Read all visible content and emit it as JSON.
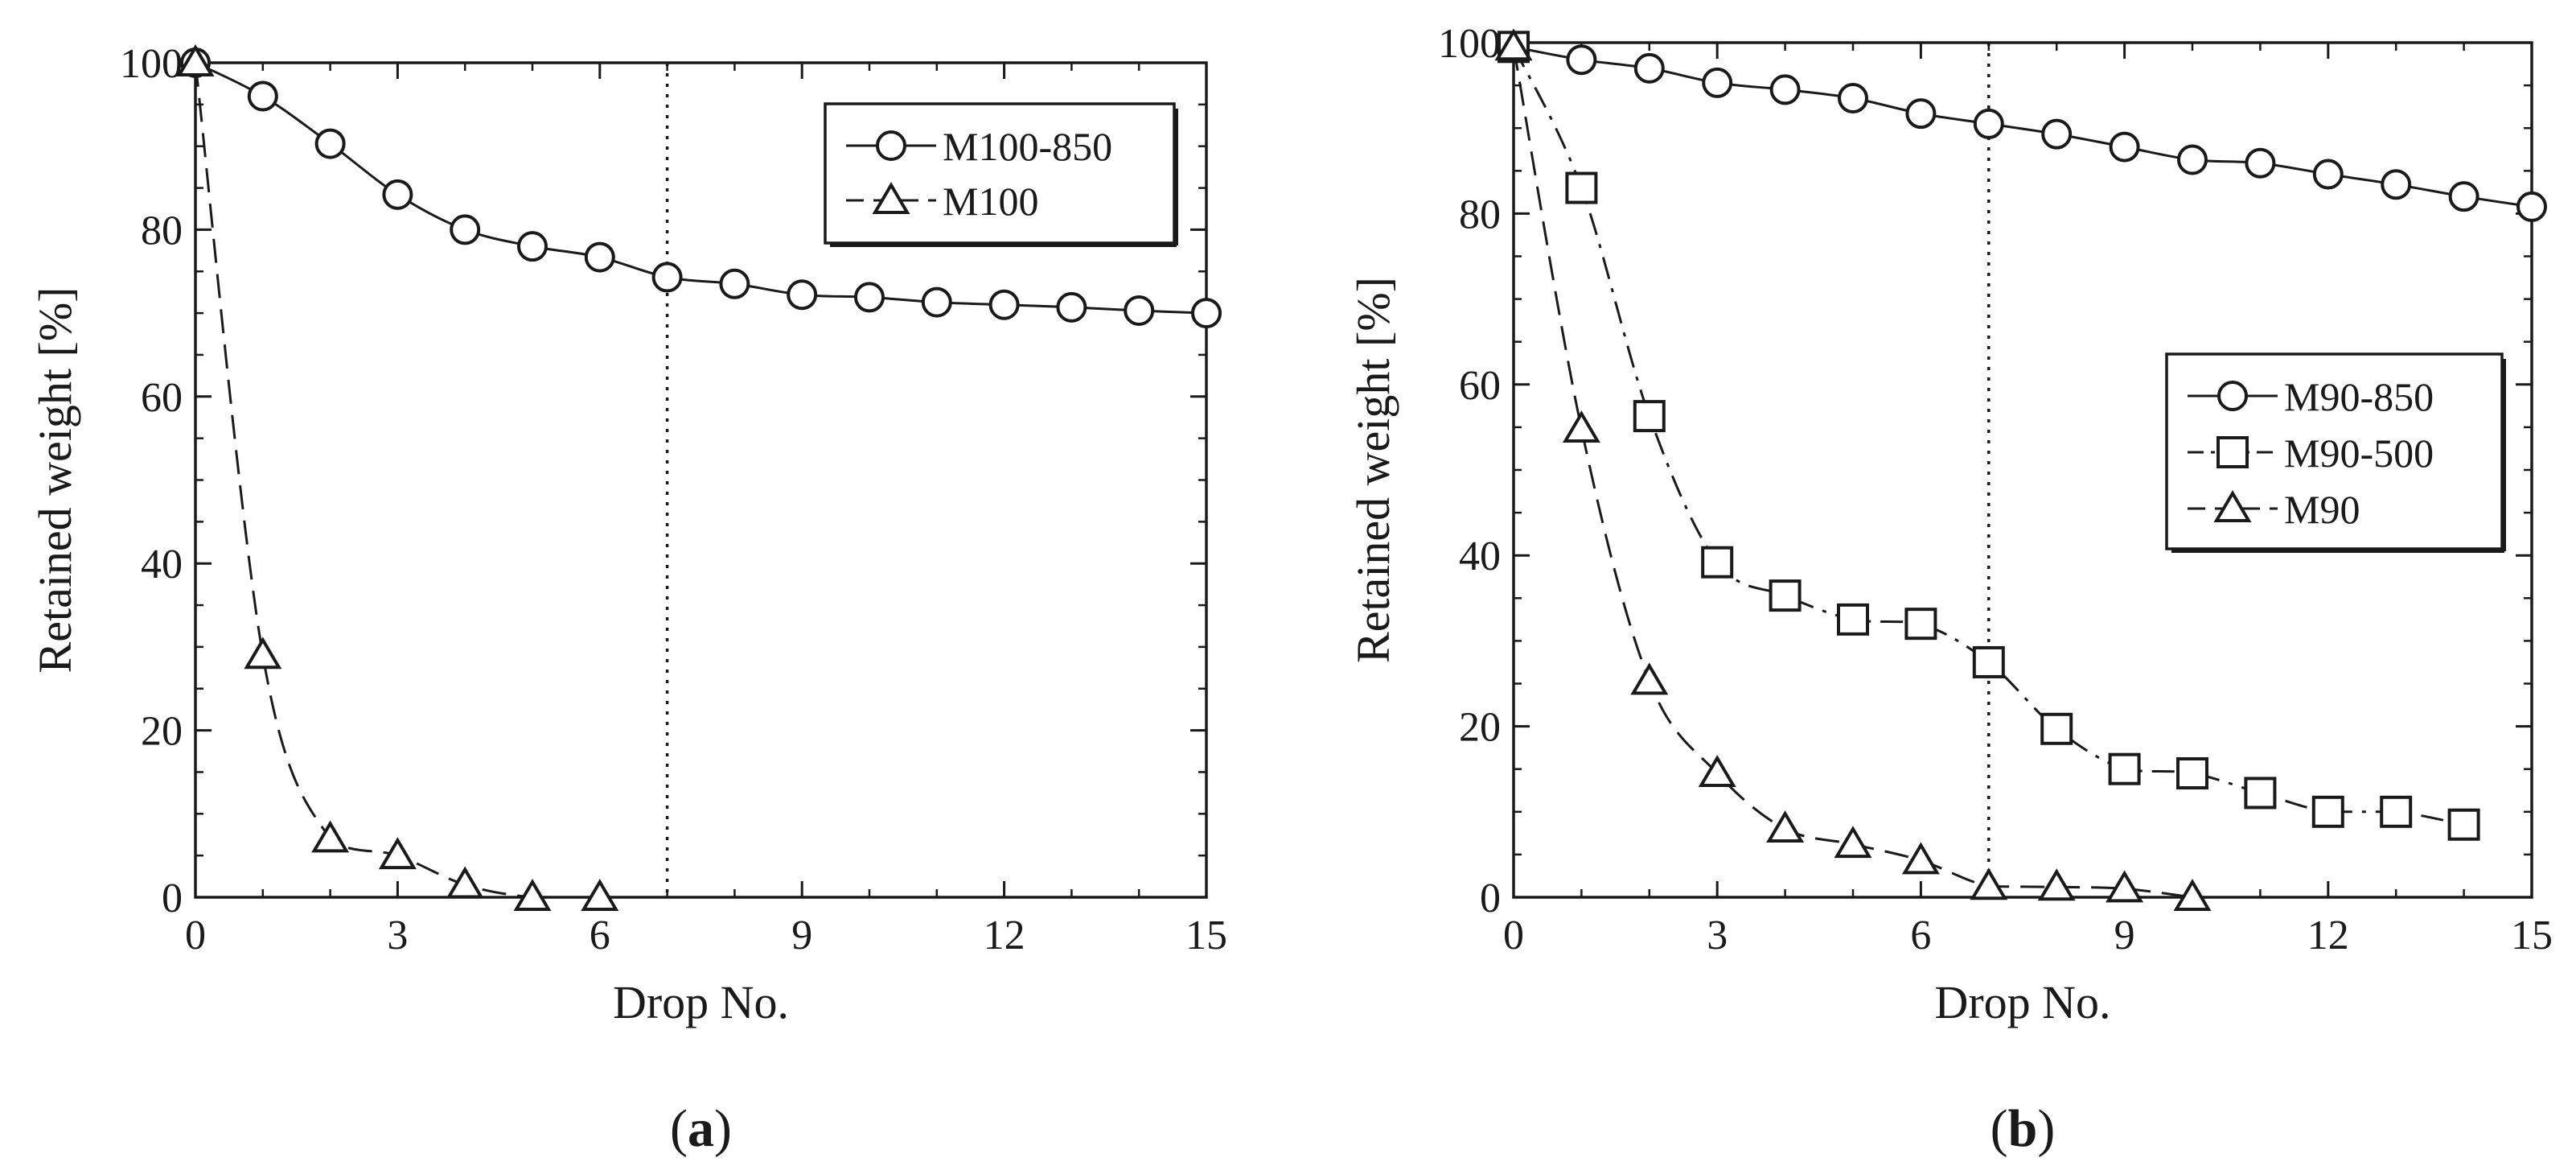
{
  "chart_data": [
    {
      "type": "line",
      "panel_label": "a",
      "xlabel": "Drop No.",
      "ylabel": "Retained weight [%]",
      "xlim": [
        0,
        15
      ],
      "ylim": [
        0,
        100
      ],
      "xticks": [
        0,
        3,
        6,
        9,
        12,
        15
      ],
      "yticks": [
        0,
        20,
        40,
        60,
        80,
        100
      ],
      "xtick_labels": [
        "0",
        "3",
        "6",
        "9",
        "12",
        "15"
      ],
      "ytick_labels": [
        "0",
        "20",
        "40",
        "60",
        "80",
        "100"
      ],
      "vline_x": 7,
      "legend_position": "top-right",
      "series": [
        {
          "name": "M100-850",
          "marker": "circle",
          "line": "solid",
          "x": [
            0,
            1,
            2,
            3,
            4,
            5,
            6,
            7,
            8,
            9,
            10,
            11,
            12,
            13,
            14,
            15
          ],
          "values": [
            100,
            96,
            90.3,
            84.2,
            80,
            78,
            76.7,
            74.3,
            73.5,
            72.2,
            71.9,
            71.3,
            71,
            70.7,
            70.3,
            70
          ]
        },
        {
          "name": "M100",
          "marker": "triangle",
          "line": "dashed",
          "x": [
            0,
            1,
            2,
            3,
            4,
            5,
            6
          ],
          "values": [
            100,
            29,
            7,
            5,
            1.5,
            0,
            0
          ]
        }
      ]
    },
    {
      "type": "line",
      "panel_label": "b",
      "xlabel": "Drop No.",
      "ylabel": "Retained weight [%]",
      "xlim": [
        0,
        15
      ],
      "ylim": [
        0,
        100
      ],
      "xticks": [
        0,
        3,
        6,
        9,
        12,
        15
      ],
      "yticks": [
        0,
        20,
        40,
        60,
        80,
        100
      ],
      "xtick_labels": [
        "0",
        "3",
        "6",
        "9",
        "12",
        "15"
      ],
      "ytick_labels": [
        "0",
        "20",
        "40",
        "60",
        "80",
        "100"
      ],
      "vline_x": 7,
      "legend_position": "right",
      "series": [
        {
          "name": "M90-850",
          "marker": "circle",
          "line": "solid",
          "x": [
            0,
            1,
            2,
            3,
            4,
            5,
            6,
            7,
            8,
            9,
            10,
            11,
            12,
            13,
            14,
            15
          ],
          "values": [
            99.5,
            98,
            97,
            95.3,
            94.5,
            93.5,
            91.7,
            90.5,
            89.3,
            87.8,
            86.3,
            85.9,
            84.6,
            83.4,
            82,
            80.8
          ]
        },
        {
          "name": "M90-500",
          "marker": "square",
          "line": "dashdot",
          "x": [
            0,
            1,
            2,
            3,
            4,
            5,
            6,
            7,
            8,
            9,
            10,
            11,
            12,
            13,
            14
          ],
          "values": [
            99.5,
            83,
            56.3,
            39.2,
            35.3,
            32.5,
            32,
            27.5,
            19.7,
            15,
            14.5,
            12.2,
            10,
            10,
            8.5
          ]
        },
        {
          "name": "M90",
          "marker": "triangle",
          "line": "dashed",
          "x": [
            0,
            1,
            2,
            3,
            4,
            5,
            6,
            7,
            8,
            9,
            10
          ],
          "values": [
            99.5,
            54.8,
            25.3,
            14.5,
            8,
            6.2,
            4.3,
            1.3,
            1.2,
            1,
            0
          ]
        }
      ]
    }
  ]
}
